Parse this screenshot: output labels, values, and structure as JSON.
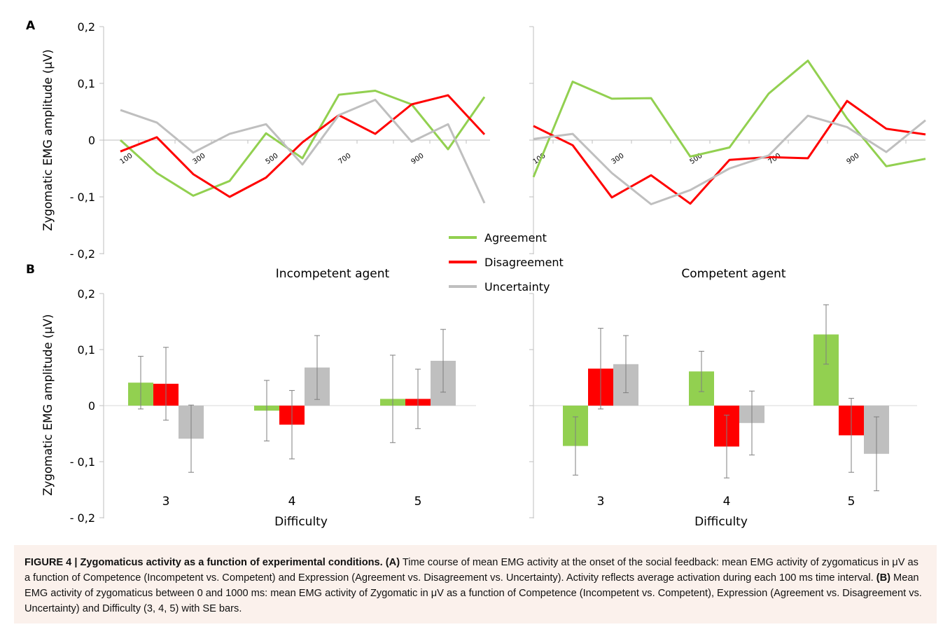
{
  "panel_labels": {
    "a": "A",
    "b": "B"
  },
  "y_axis_label": "Zygomatic EMG amplitude (μV)",
  "legend": {
    "items": [
      {
        "label": "Agreement",
        "color": "#92d050"
      },
      {
        "label": "Disagreement",
        "color": "#ff0000"
      },
      {
        "label": "Uncertainty",
        "color": "#bfbfbf"
      }
    ]
  },
  "titles": {
    "incompetent": "Incompetent agent",
    "competent": "Competent agent"
  },
  "caption": {
    "title": "FIGURE 4 | Zygomaticus activity as a function of experimental conditions.",
    "a_label": "(A)",
    "a_text": "Time course of mean EMG activity at the onset of the social feedback: mean EMG activity of zygomaticus in μV as a function of Competence (Incompetent vs. Competent) and Expression (Agreement vs. Disagreement vs. Uncertainty). Activity reflects average activation during each 100 ms time interval.",
    "b_label": "(B)",
    "b_text": "Mean EMG activity of zygomaticus between 0 and 1000 ms: mean EMG activity of Zygomatic in μV as a function of Competence (Incompetent vs. Competent), Expression (Agreement vs. Disagreement vs. Uncertainty) and Difficulty (3, 4, 5) with SE bars."
  },
  "chart_data": [
    {
      "panel": "A-incompetent",
      "type": "line",
      "ylim": [
        -0.2,
        0.2
      ],
      "yticks": [
        "0,2",
        "0,1",
        "0",
        "- 0,1",
        "- 0,2"
      ],
      "x": [
        100,
        200,
        300,
        400,
        500,
        600,
        700,
        800,
        900,
        1000,
        1100
      ],
      "xtick_labels": [
        "100",
        "300",
        "500",
        "700",
        "900"
      ],
      "series": [
        {
          "name": "Agreement",
          "values": [
            0.0,
            -0.058,
            -0.098,
            -0.072,
            0.012,
            -0.032,
            0.08,
            0.087,
            0.063,
            -0.016,
            0.076
          ]
        },
        {
          "name": "Disagreement",
          "values": [
            -0.02,
            0.005,
            -0.06,
            -0.1,
            -0.066,
            -0.004,
            0.044,
            0.011,
            0.063,
            0.079,
            0.01
          ]
        },
        {
          "name": "Uncertainty",
          "values": [
            0.053,
            0.031,
            -0.022,
            0.011,
            0.028,
            -0.043,
            0.044,
            0.071,
            -0.003,
            0.028,
            -0.111
          ]
        }
      ]
    },
    {
      "panel": "A-competent",
      "type": "line",
      "ylim": [
        -0.2,
        0.2
      ],
      "x": [
        100,
        200,
        300,
        400,
        500,
        600,
        700,
        800,
        900,
        1000,
        1100
      ],
      "xtick_labels": [
        "100",
        "300",
        "500",
        "700",
        "900"
      ],
      "series": [
        {
          "name": "Agreement",
          "values": [
            -0.065,
            0.103,
            0.073,
            0.074,
            -0.029,
            -0.013,
            0.082,
            0.14,
            0.038,
            -0.046,
            -0.033
          ]
        },
        {
          "name": "Disagreement",
          "values": [
            0.025,
            -0.009,
            -0.101,
            -0.062,
            -0.112,
            -0.035,
            -0.03,
            -0.032,
            0.069,
            0.02,
            0.01
          ]
        },
        {
          "name": "Uncertainty",
          "values": [
            0.002,
            0.011,
            -0.058,
            -0.113,
            -0.088,
            -0.05,
            -0.027,
            0.043,
            0.023,
            -0.021,
            0.035
          ]
        }
      ]
    },
    {
      "panel": "B-incompetent",
      "type": "bar",
      "title": "Incompetent agent",
      "xlabel": "Difficulty",
      "ylim": [
        -0.2,
        0.2
      ],
      "yticks": [
        "0,2",
        "0,1",
        "0",
        "- 0,1",
        "- 0,2"
      ],
      "categories": [
        "3",
        "4",
        "5"
      ],
      "series": [
        {
          "name": "Agreement",
          "values": [
            0.041,
            -0.009,
            0.012
          ],
          "se": [
            0.047,
            0.054,
            0.078
          ]
        },
        {
          "name": "Disagreement",
          "values": [
            0.039,
            -0.034,
            0.012
          ],
          "se": [
            0.065,
            0.061,
            0.053
          ]
        },
        {
          "name": "Uncertainty",
          "values": [
            -0.059,
            0.068,
            0.08
          ],
          "se": [
            0.06,
            0.057,
            0.056
          ]
        }
      ]
    },
    {
      "panel": "B-competent",
      "type": "bar",
      "title": "Competent agent",
      "xlabel": "Difficulty",
      "ylim": [
        -0.2,
        0.2
      ],
      "categories": [
        "3",
        "4",
        "5"
      ],
      "series": [
        {
          "name": "Agreement",
          "values": [
            -0.072,
            0.061,
            0.127
          ],
          "se": [
            0.052,
            0.036,
            0.053
          ]
        },
        {
          "name": "Disagreement",
          "values": [
            0.066,
            -0.073,
            -0.053
          ],
          "se": [
            0.072,
            0.056,
            0.066
          ]
        },
        {
          "name": "Uncertainty",
          "values": [
            0.074,
            -0.031,
            -0.086
          ],
          "se": [
            0.051,
            0.057,
            0.066
          ]
        }
      ]
    }
  ]
}
